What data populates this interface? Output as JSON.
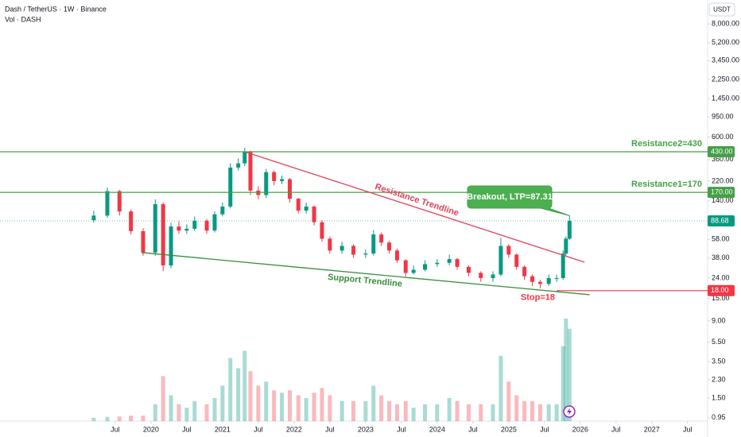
{
  "chart_data": {
    "type": "candlestick",
    "title": "Dash / TetherUS · 1W · Binance",
    "subtitle": "Vol · DASH",
    "currency": "USDT",
    "log_scale": true,
    "xlim": [
      2017.89,
      2027.78
    ],
    "xticks": [
      {
        "value": 2019.5,
        "label": "Jul"
      },
      {
        "value": 2020,
        "label": "2020"
      },
      {
        "value": 2020.5,
        "label": "Jul"
      },
      {
        "value": 2021,
        "label": "2021"
      },
      {
        "value": 2021.5,
        "label": "Jul"
      },
      {
        "value": 2022,
        "label": "2022"
      },
      {
        "value": 2022.5,
        "label": "Jul"
      },
      {
        "value": 2023,
        "label": "2023"
      },
      {
        "value": 2023.5,
        "label": "Jul"
      },
      {
        "value": 2024,
        "label": "2024"
      },
      {
        "value": 2024.5,
        "label": "Jul"
      },
      {
        "value": 2025,
        "label": "2025"
      },
      {
        "value": 2025.5,
        "label": "Jul"
      },
      {
        "value": 2026,
        "label": "2026"
      },
      {
        "value": 2026.5,
        "label": "Jul"
      },
      {
        "value": 2027,
        "label": "2027"
      },
      {
        "value": 2027.5,
        "label": "Jul"
      }
    ],
    "ylim": [
      12.7,
      13800
    ],
    "yticks": [
      {
        "value": 8000,
        "label": "8,000.00"
      },
      {
        "value": 5200,
        "label": "5,200.00"
      },
      {
        "value": 3450,
        "label": "3,450.00"
      },
      {
        "value": 2250,
        "label": "2,250.00"
      },
      {
        "value": 1450,
        "label": "1,450.00"
      },
      {
        "value": 950,
        "label": "950.00"
      },
      {
        "value": 600,
        "label": "600.00"
      },
      {
        "value": 360,
        "label": "360.00"
      },
      {
        "value": 220,
        "label": "220.00"
      },
      {
        "value": 140,
        "label": "140.00"
      },
      {
        "value": 58,
        "label": "58.00"
      },
      {
        "value": 38,
        "label": "38.00"
      },
      {
        "value": 24,
        "label": "24.00"
      },
      {
        "value": 15,
        "label": "15.00"
      }
    ],
    "vlim": [
      0.88,
      10.6
    ],
    "vticks": [
      {
        "value": 9,
        "label": "9.00"
      },
      {
        "value": 5.5,
        "label": "5.50"
      },
      {
        "value": 3.5,
        "label": "3.50"
      },
      {
        "value": 2.3,
        "label": "2.30"
      },
      {
        "value": 1.5,
        "label": "1.50"
      },
      {
        "value": 0.95,
        "label": "0.95"
      }
    ],
    "up_color": "#089981",
    "down_color": "#f23645",
    "x": [
      2019.2,
      2019.39,
      2019.56,
      2019.72,
      2019.89,
      2020.06,
      2020.17,
      2020.28,
      2020.39,
      2020.5,
      2020.61,
      2020.78,
      2020.89,
      2021.0,
      2021.11,
      2021.22,
      2021.31,
      2021.39,
      2021.5,
      2021.61,
      2021.72,
      2021.83,
      2021.94,
      2022.06,
      2022.17,
      2022.28,
      2022.39,
      2022.5,
      2022.67,
      2022.83,
      2023.0,
      2023.11,
      2023.22,
      2023.33,
      2023.44,
      2023.56,
      2023.67,
      2023.83,
      2024.0,
      2024.17,
      2024.28,
      2024.44,
      2024.61,
      2024.78,
      2024.89,
      2025.0,
      2025.11,
      2025.22,
      2025.33,
      2025.44,
      2025.56,
      2025.67,
      2025.76,
      2025.8,
      2025.85
    ],
    "open": [
      90,
      100,
      175,
      110,
      70,
      43,
      130,
      32,
      78,
      71,
      74,
      89,
      71,
      103,
      123,
      300,
      330,
      430,
      177,
      160,
      270,
      220,
      230,
      147,
      112,
      123,
      86,
      59,
      45,
      50,
      41,
      42,
      65,
      54,
      45,
      36,
      27,
      29,
      33,
      34,
      37,
      31,
      27,
      24,
      26,
      50,
      41,
      31,
      25,
      22,
      21,
      24,
      24,
      42,
      59
    ],
    "high": [
      112,
      190,
      180,
      115,
      75,
      145,
      135,
      85,
      88,
      82,
      98,
      92,
      110,
      135,
      330,
      370,
      470,
      440,
      195,
      290,
      280,
      250,
      235,
      150,
      135,
      126,
      90,
      62,
      55,
      52,
      46,
      72,
      68,
      56,
      47,
      37,
      32,
      36,
      37,
      41,
      38,
      32,
      28,
      28,
      60,
      52,
      42,
      32,
      26,
      23,
      26,
      26,
      45,
      62,
      100
    ],
    "low": [
      85,
      95,
      100,
      65,
      40,
      40,
      28,
      30,
      66,
      66,
      70,
      66,
      68,
      98,
      118,
      280,
      310,
      160,
      145,
      150,
      200,
      205,
      135,
      105,
      105,
      80,
      55,
      42,
      42,
      38,
      38,
      40,
      50,
      42,
      34,
      25,
      26,
      28,
      31,
      32,
      29,
      25,
      22,
      22,
      25,
      38,
      29,
      23,
      20,
      19,
      20,
      22,
      23,
      40,
      57
    ],
    "close": [
      100,
      175,
      110,
      70,
      43,
      130,
      32,
      78,
      71,
      74,
      89,
      71,
      103,
      123,
      300,
      330,
      430,
      177,
      160,
      270,
      220,
      230,
      147,
      112,
      123,
      86,
      59,
      45,
      50,
      41,
      42,
      65,
      54,
      45,
      36,
      27,
      29,
      33,
      34,
      37,
      31,
      27,
      24,
      26,
      50,
      41,
      31,
      25,
      22,
      21,
      24,
      24,
      42,
      59,
      88.68
    ],
    "volume": [
      0.95,
      0.97,
      0.98,
      1.0,
      1.0,
      1.3,
      2.5,
      1.6,
      1.3,
      1.2,
      1.4,
      1.3,
      1.5,
      2.0,
      3.8,
      3.0,
      4.5,
      2.8,
      2.0,
      2.2,
      1.8,
      1.7,
      1.8,
      1.6,
      1.5,
      1.7,
      1.9,
      1.6,
      1.4,
      1.4,
      1.4,
      2.0,
      1.6,
      1.4,
      1.3,
      1.4,
      1.2,
      1.3,
      1.3,
      1.5,
      1.4,
      1.3,
      1.3,
      1.3,
      4.0,
      2.2,
      1.6,
      1.4,
      1.4,
      1.3,
      1.3,
      1.3,
      5.0,
      9.5,
      7.5
    ],
    "levels": [
      {
        "name": "Resistance2=430",
        "value": 430,
        "label": "430.00",
        "color": "#43a047"
      },
      {
        "name": "Resistance1=170",
        "value": 170,
        "label": "170.00",
        "color": "#43a047"
      },
      {
        "name": "Stop=18",
        "value": 18,
        "label": "18.00",
        "color": "#f23645"
      }
    ],
    "trendlines": [
      {
        "name": "Resistance Trendline",
        "color": "#e0435a",
        "points": [
          [
            2021.31,
            430
          ],
          [
            2026.06,
            34.5
          ]
        ]
      },
      {
        "name": "Support Trendline",
        "color": "#388e3c",
        "points": [
          [
            2019.87,
            43
          ],
          [
            2026.13,
            16.4
          ]
        ]
      }
    ],
    "callout": "Breakout, LTP=87.31"
  }
}
